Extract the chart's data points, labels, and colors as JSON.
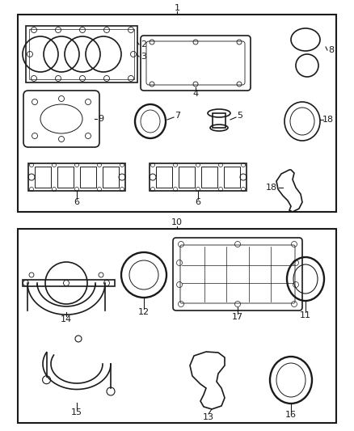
{
  "bg_color": "#ffffff",
  "dark": "#1a1a1a",
  "fig_width": 4.38,
  "fig_height": 5.33
}
